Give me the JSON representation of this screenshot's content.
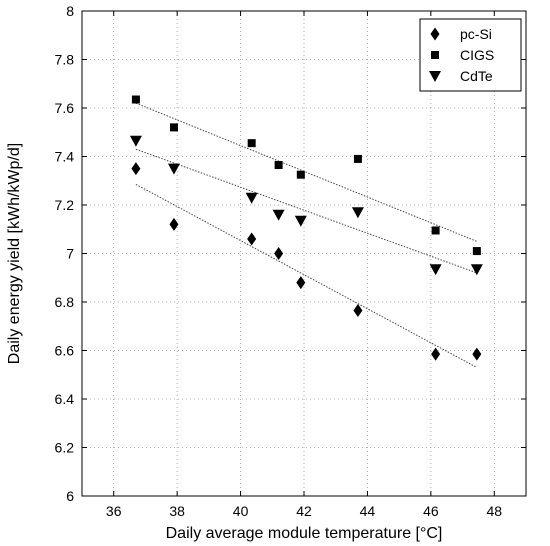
{
  "chart_data": {
    "type": "scatter",
    "xlabel": "Daily average module temperature [°C]",
    "ylabel": "Daily energy yield [kWh/kWp/d]",
    "xlim": [
      35,
      49
    ],
    "ylim": [
      6,
      8
    ],
    "xticks": [
      36,
      38,
      40,
      42,
      44,
      46,
      48
    ],
    "yticks": [
      6,
      6.2,
      6.4,
      6.6,
      6.8,
      7,
      7.2,
      7.4,
      7.6,
      7.8,
      8
    ],
    "grid": true,
    "grid_style": "dotted",
    "legend_position": "top-right",
    "series": [
      {
        "name": "pc-Si",
        "marker": "diamond",
        "x": [
          36.7,
          37.9,
          40.35,
          41.2,
          41.9,
          43.7,
          46.15,
          47.45
        ],
        "y": [
          7.35,
          7.12,
          7.06,
          7.0,
          6.88,
          6.765,
          6.585,
          6.585
        ],
        "trend": [
          [
            36.7,
            7.285
          ],
          [
            47.45,
            6.53
          ]
        ]
      },
      {
        "name": "CIGS",
        "marker": "square",
        "x": [
          36.7,
          37.9,
          40.35,
          41.2,
          41.9,
          43.7,
          46.15,
          47.45
        ],
        "y": [
          7.635,
          7.52,
          7.455,
          7.365,
          7.325,
          7.39,
          7.095,
          7.01
        ],
        "trend": [
          [
            36.7,
            7.62
          ],
          [
            47.45,
            7.05
          ]
        ]
      },
      {
        "name": "CdTe",
        "marker": "triangle-down",
        "x": [
          36.7,
          37.9,
          40.35,
          41.2,
          41.9,
          43.7,
          46.15,
          47.45
        ],
        "y": [
          7.465,
          7.35,
          7.23,
          7.16,
          7.135,
          7.17,
          6.935,
          6.935
        ],
        "trend": [
          [
            36.7,
            7.43
          ],
          [
            47.45,
            6.92
          ]
        ]
      }
    ]
  }
}
